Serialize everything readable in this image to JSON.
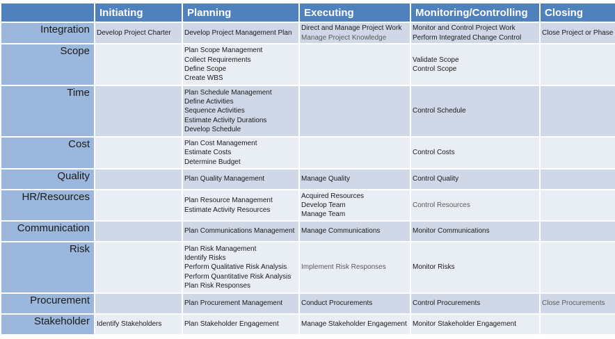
{
  "header": {
    "corner": "",
    "phases": [
      "Initiating",
      "Planning",
      "Executing",
      "Monitoring/Controlling",
      "Closing"
    ]
  },
  "rows": [
    {
      "area": "Integration",
      "cells": [
        [
          "Develop Project Charter"
        ],
        [
          "Develop Project Management Plan"
        ],
        [
          "Direct and Manage Project Work",
          "Manage Project Knowledge"
        ],
        [
          "Monitor and Control Project Work",
          "Perform Integrated Change Control"
        ],
        [
          "Close Project or Phase"
        ]
      ]
    },
    {
      "area": "Scope",
      "cells": [
        [],
        [
          "Plan Scope Management",
          "Collect Requirements",
          "Define Scope",
          "Create WBS"
        ],
        [],
        [
          "Validate Scope",
          "Control Scope"
        ],
        []
      ]
    },
    {
      "area": "Time",
      "cells": [
        [],
        [
          "Plan Schedule Management",
          "Define Activities",
          "Sequence Activities",
          "Estimate Activity Durations",
          "Develop Schedule"
        ],
        [],
        [
          "Control Schedule"
        ],
        []
      ]
    },
    {
      "area": "Cost",
      "cells": [
        [],
        [
          "Plan Cost Management",
          "Estimate Costs",
          "Determine Budget"
        ],
        [],
        [
          "Control Costs"
        ],
        []
      ]
    },
    {
      "area": "Quality",
      "cells": [
        [],
        [
          "Plan Quality Management"
        ],
        [
          "Manage Quality"
        ],
        [
          "Control Quality"
        ],
        []
      ]
    },
    {
      "area": "HR/Resources",
      "cells": [
        [],
        [
          "Plan Resource Management",
          "Estimate Activity Resources"
        ],
        [
          "Acquired Resources",
          "Develop Team",
          "Manage Team"
        ],
        [
          "Control Resources"
        ],
        []
      ]
    },
    {
      "area": "Communication",
      "cells": [
        [],
        [
          "Plan Communications Management"
        ],
        [
          "Manage Communications"
        ],
        [
          "Monitor Communications"
        ],
        []
      ]
    },
    {
      "area": "Risk",
      "cells": [
        [],
        [
          "Plan Risk Management",
          "Identify Risks",
          "Perform Qualitative Risk Analysis",
          "Perform Quantitative Risk Analysis",
          "Plan Risk Responses"
        ],
        [
          "Implement Risk Responses"
        ],
        [
          "Monitor Risks"
        ],
        []
      ]
    },
    {
      "area": "Procurement",
      "cells": [
        [],
        [
          "Plan Procurement Management"
        ],
        [
          "Conduct Procurements"
        ],
        [
          "Control Procurements"
        ],
        [
          "Close Procurements"
        ]
      ]
    },
    {
      "area": "Stakeholder",
      "cells": [
        [
          "Identify Stakeholders"
        ],
        [
          "Plan Stakeholder Engagement"
        ],
        [
          "Manage Stakeholder Engagement"
        ],
        [
          "Monitor Stakeholder Engagement"
        ],
        []
      ]
    }
  ]
}
